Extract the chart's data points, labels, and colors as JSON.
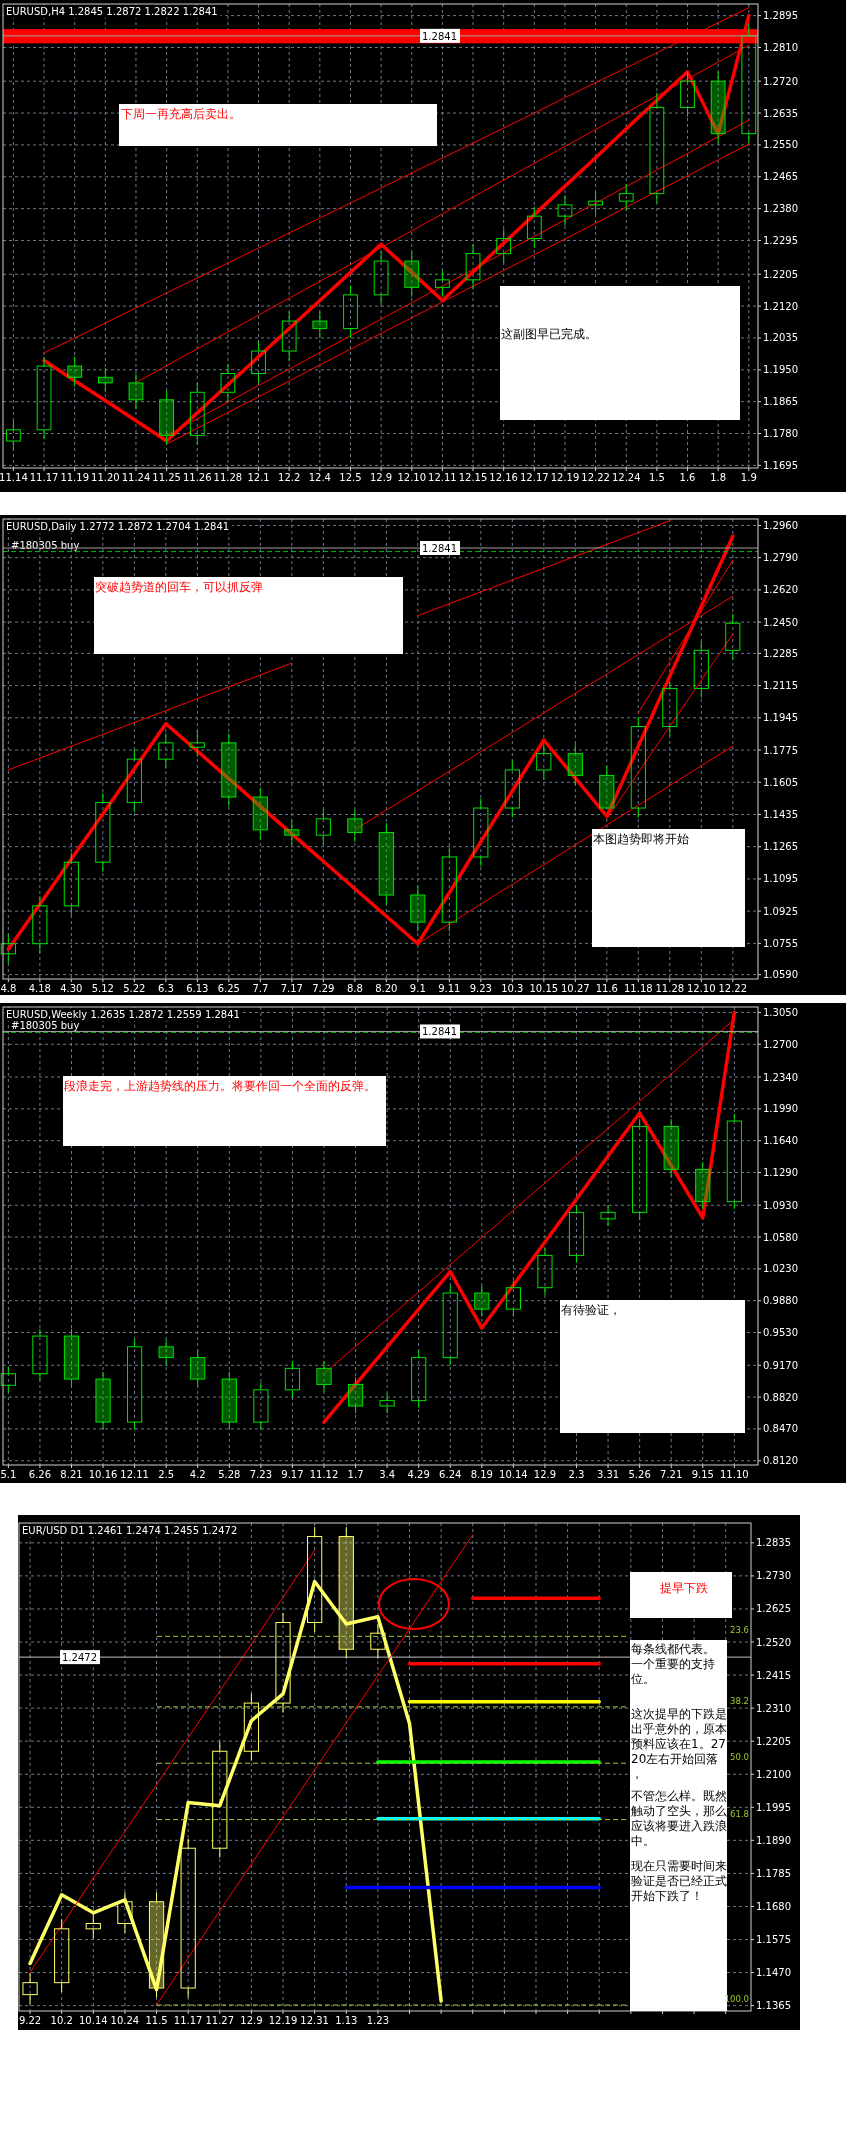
{
  "chart_data": [
    {
      "type": "candlestick",
      "title": "EURUSD,H4 1.2845 1.2872 1.2822 1.2841",
      "grid": true,
      "categories": [
        "11.14",
        "11.17",
        "11.19",
        "11.20",
        "11.24",
        "11.25",
        "11.26",
        "11.28",
        "12.1",
        "12.2",
        "12.4",
        "12.5",
        "12.9",
        "12.10",
        "12.11",
        "12.15",
        "12.16",
        "12.17",
        "12.19",
        "12.22",
        "12.24",
        "1.5",
        "1.6",
        "1.8",
        "1.9"
      ],
      "ylim": [
        1.1688,
        1.2926
      ],
      "yticks": [
        {
          "value": 1.1695,
          "label": "1.1695"
        },
        {
          "value": 1.178,
          "label": "1.1780"
        },
        {
          "value": 1.1865,
          "label": "1.1865"
        },
        {
          "value": 1.195,
          "label": "1.1950"
        },
        {
          "value": 1.2035,
          "label": "1.2035"
        },
        {
          "value": 1.212,
          "label": "1.2120"
        },
        {
          "value": 1.2205,
          "label": "1.2205"
        },
        {
          "value": 1.2295,
          "label": "1.2295"
        },
        {
          "value": 1.238,
          "label": "1.2380"
        },
        {
          "value": 1.2465,
          "label": "1.2465"
        },
        {
          "value": 1.255,
          "label": "1.2550"
        },
        {
          "value": 1.2635,
          "label": "1.2635"
        },
        {
          "value": 1.272,
          "label": "1.2720"
        },
        {
          "value": 1.281,
          "label": "1.2810"
        },
        {
          "value": 1.2895,
          "label": "1.2895"
        }
      ],
      "series": [
        {
          "type": "candlestick",
          "color": "#00e000",
          "ohlc": [
            [
              1.176,
              1.1815,
              1.1735,
              1.179
            ],
            [
              1.179,
              1.1985,
              1.1765,
              1.196
            ],
            [
              1.196,
              1.1985,
              1.1905,
              1.193
            ],
            [
              1.193,
              1.1955,
              1.189,
              1.1915
            ],
            [
              1.1915,
              1.194,
              1.1845,
              1.187
            ],
            [
              1.187,
              1.1895,
              1.175,
              1.1775
            ],
            [
              1.1775,
              1.1915,
              1.175,
              1.189
            ],
            [
              1.189,
              1.1965,
              1.1865,
              1.194
            ],
            [
              1.194,
              1.2025,
              1.1915,
              1.2
            ],
            [
              1.2,
              1.2105,
              1.1975,
              1.208
            ],
            [
              1.208,
              1.2105,
              1.2035,
              1.206
            ],
            [
              1.206,
              1.2175,
              1.2035,
              1.215
            ],
            [
              1.215,
              1.2265,
              1.2125,
              1.224
            ],
            [
              1.224,
              1.2265,
              1.2145,
              1.217
            ],
            [
              1.217,
              1.2215,
              1.2145,
              1.219
            ],
            [
              1.219,
              1.2285,
              1.2165,
              1.226
            ],
            [
              1.226,
              1.2325,
              1.2235,
              1.23
            ],
            [
              1.23,
              1.2385,
              1.2275,
              1.236
            ],
            [
              1.236,
              1.2415,
              1.2335,
              1.239
            ],
            [
              1.239,
              1.2425,
              1.2365,
              1.24
            ],
            [
              1.24,
              1.2445,
              1.2375,
              1.242
            ],
            [
              1.242,
              1.269,
              1.2395,
              1.265
            ],
            [
              1.265,
              1.2745,
              1.2625,
              1.272
            ],
            [
              1.272,
              1.2745,
              1.2555,
              1.258
            ],
            [
              1.258,
              1.2872,
              1.2555,
              1.2841
            ]
          ]
        },
        {
          "type": "line",
          "color": "#ff0000",
          "values": [
            null,
            1.1975,
            1.1921,
            1.1868,
            1.1814,
            1.176,
            1.1835,
            1.191,
            1.1985,
            1.206,
            1.2135,
            1.221,
            1.2285,
            1.221,
            1.2135,
            1.2211,
            1.2288,
            1.2364,
            1.244,
            1.2516,
            1.2593,
            1.2669,
            1.2745,
            1.258,
            1.2895
          ]
        },
        {
          "type": "line",
          "color": "#ff0000",
          "values": [
            null,
            1.1995,
            1.2035,
            1.2075,
            1.2115,
            1.2155,
            1.2195,
            1.2235,
            1.2275,
            1.2315,
            1.2355,
            1.2395,
            1.2435,
            1.2475,
            1.2515,
            1.2555,
            1.2595,
            1.2635,
            1.2676,
            1.2716,
            1.2756,
            1.2796,
            1.2836,
            1.2876,
            1.2916
          ]
        },
        {
          "type": "line",
          "color": "#ff0000",
          "values": [
            null,
            null,
            null,
            null,
            1.1916,
            1.1961,
            1.2006,
            1.2051,
            1.2096,
            1.2141,
            1.2186,
            1.2231,
            1.2276,
            1.2321,
            1.2366,
            1.2411,
            1.2456,
            1.2501,
            1.2546,
            1.2591,
            1.2636,
            1.2681,
            1.2726,
            1.2771,
            1.2816
          ]
        },
        {
          "type": "line",
          "color": "#ff0000",
          "values": [
            null,
            null,
            null,
            null,
            null,
            1.1752,
            1.1794,
            1.1836,
            1.1878,
            1.192,
            1.1963,
            1.2005,
            1.2047,
            1.2089,
            1.2131,
            1.2173,
            1.2215,
            1.2257,
            1.2299,
            1.2341,
            1.2384,
            1.2426,
            1.2468,
            1.251,
            1.2552
          ]
        },
        {
          "type": "line",
          "color": "#ff0000",
          "values": [
            null,
            null,
            null,
            null,
            null,
            1.1775,
            1.1819,
            1.1864,
            1.1908,
            1.1952,
            1.1996,
            1.2041,
            1.2085,
            1.2129,
            1.2173,
            1.2218,
            1.2262,
            1.2306,
            1.235,
            1.2395,
            1.2439,
            1.2483,
            1.2527,
            1.2572,
            1.2616
          ]
        }
      ],
      "bands": [
        {
          "axis": "y",
          "from": 1.2821,
          "to": 1.2859,
          "color": "#ff0000"
        }
      ],
      "ref_lines": [
        {
          "axis": "y",
          "value": 1.2841,
          "label": "1.2841"
        }
      ],
      "annotations": [
        "下周一再充高后卖出。",
        "这副图早已完成。"
      ]
    },
    {
      "type": "candlestick",
      "title": "EURUSD,Daily 1.2772 1.2872 1.2704 1.2841",
      "grid": true,
      "categories": [
        "4.8",
        "4.18",
        "4.30",
        "5.12",
        "5.22",
        "6.3",
        "6.13",
        "6.25",
        "7.7",
        "7.17",
        "7.29",
        "8.8",
        "8.20",
        "9.1",
        "9.11",
        "9.23",
        "10.3",
        "10.15",
        "10.27",
        "11.6",
        "11.18",
        "11.28",
        "12.10",
        "12.22"
      ],
      "ylim": [
        1.0567,
        1.2994
      ],
      "yticks": [
        {
          "value": 1.059,
          "label": "1.0590"
        },
        {
          "value": 1.0755,
          "label": "1.0755"
        },
        {
          "value": 1.0925,
          "label": "1.0925"
        },
        {
          "value": 1.1095,
          "label": "1.1095"
        },
        {
          "value": 1.1265,
          "label": "1.1265"
        },
        {
          "value": 1.1435,
          "label": "1.1435"
        },
        {
          "value": 1.1605,
          "label": "1.1605"
        },
        {
          "value": 1.1775,
          "label": "1.1775"
        },
        {
          "value": 1.1945,
          "label": "1.1945"
        },
        {
          "value": 1.2115,
          "label": "1.2115"
        },
        {
          "value": 1.2285,
          "label": "1.2285"
        },
        {
          "value": 1.245,
          "label": "1.2450"
        },
        {
          "value": 1.262,
          "label": "1.2620"
        },
        {
          "value": 1.279,
          "label": "1.2790"
        },
        {
          "value": 1.296,
          "label": "1.2960"
        }
      ],
      "series": [
        {
          "type": "candlestick",
          "color": "#00e000",
          "ohlc": [
            [
              1.07,
              1.0803,
              1.065,
              1.0753
            ],
            [
              1.0753,
              1.1003,
              1.0703,
              1.0953
            ],
            [
              1.0953,
              1.1233,
              1.0903,
              1.1183
            ],
            [
              1.1183,
              1.1548,
              1.1133,
              1.1498
            ],
            [
              1.1498,
              1.1777,
              1.1448,
              1.1727
            ],
            [
              1.1727,
              1.1863,
              1.1677,
              1.1813
            ],
            [
              1.179,
              1.188,
              1.174,
              1.1813
            ],
            [
              1.1813,
              1.1863,
              1.1477,
              1.1527
            ],
            [
              1.1527,
              1.1577,
              1.1304,
              1.1354
            ],
            [
              1.1354,
              1.1404,
              1.1276,
              1.1326
            ],
            [
              1.1326,
              1.1462,
              1.1276,
              1.1412
            ],
            [
              1.1412,
              1.1462,
              1.129,
              1.134
            ],
            [
              1.134,
              1.139,
              1.096,
              1.101
            ],
            [
              1.101,
              1.106,
              1.0817,
              1.0867
            ],
            [
              1.0867,
              1.1261,
              1.0817,
              1.1211
            ],
            [
              1.1211,
              1.1519,
              1.1161,
              1.1469
            ],
            [
              1.1469,
              1.172,
              1.1419,
              1.167
            ],
            [
              1.167,
              1.1806,
              1.162,
              1.1756
            ],
            [
              1.1756,
              1.1806,
              1.1591,
              1.1641
            ],
            [
              1.1641,
              1.1691,
              1.1469,
              1.1469
            ],
            [
              1.1469,
              1.1949,
              1.1419,
              1.1899
            ],
            [
              1.1899,
              1.213,
              1.1849,
              1.21
            ],
            [
              1.21,
              1.2351,
              1.205,
              1.2301
            ],
            [
              1.2301,
              1.2494,
              1.2251,
              1.2444
            ]
          ]
        },
        {
          "type": "line",
          "color": "#ff0000",
          "values": [
            1.0724,
            1.0962,
            1.12,
            1.1438,
            1.1676,
            1.1914,
            1.1769,
            1.1624,
            1.1478,
            1.1333,
            1.1188,
            1.1043,
            1.0898,
            1.0753,
            1.1022,
            1.1291,
            1.1559,
            1.1828,
            1.1627,
            1.1426,
            1.1795,
            1.2165,
            1.2534,
            1.2903
          ]
        },
        {
          "type": "line",
          "color": "#ff0000",
          "values": [
            1.167,
            1.1733,
            1.1795,
            1.1858,
            1.192,
            1.1983,
            1.2046,
            1.2108,
            1.2171,
            1.2234,
            null,
            null,
            null,
            1.2484,
            1.2547,
            1.2609,
            1.2672,
            1.2734,
            1.2797,
            1.286,
            1.2922,
            1.2985,
            null,
            null
          ]
        },
        {
          "type": "line",
          "color": "#ff0000",
          "values": [
            null,
            null,
            null,
            null,
            null,
            null,
            null,
            null,
            null,
            null,
            null,
            1.1355,
            1.1458,
            1.156,
            1.1663,
            1.1766,
            1.1868,
            1.1971,
            1.2074,
            1.2176,
            1.2279,
            1.2382,
            1.2484,
            1.2587
          ]
        },
        {
          "type": "line",
          "color": "#ff0000",
          "values": [
            null,
            null,
            null,
            null,
            null,
            null,
            null,
            null,
            null,
            null,
            null,
            null,
            null,
            1.0753,
            1.0857,
            1.0962,
            1.1066,
            1.117,
            1.1275,
            1.1379,
            1.1483,
            1.1587,
            1.1692,
            1.1796
          ]
        },
        {
          "type": "line",
          "color": "#ff0000",
          "values": [
            null,
            null,
            null,
            null,
            null,
            null,
            null,
            null,
            null,
            null,
            null,
            null,
            null,
            null,
            null,
            null,
            null,
            null,
            null,
            null,
            1.1971,
            1.224,
            1.2508,
            1.2777
          ]
        },
        {
          "type": "line",
          "color": "#ff0000",
          "values": [
            null,
            null,
            null,
            null,
            null,
            null,
            null,
            null,
            null,
            null,
            null,
            null,
            null,
            null,
            null,
            null,
            null,
            null,
            null,
            1.1412,
            1.1656,
            1.19,
            1.2143,
            1.2387
          ]
        }
      ],
      "ref_lines": [
        {
          "axis": "y",
          "value": 1.2822,
          "label": "#180305 buy",
          "color": "#00c000",
          "line_style": "dashed"
        },
        {
          "axis": "y",
          "value": 1.2841,
          "label": "1.2841"
        }
      ],
      "annotations": [
        "突破趋势道的回车，可以抓反弹",
        "本图趋势即将开始"
      ]
    },
    {
      "type": "candlestick",
      "title": "EURUSD,Weekly 1.2635 1.2872 1.2559 1.2841",
      "grid": true,
      "categories": [
        "5.1",
        "6.26",
        "8.21",
        "10.16",
        "12.11",
        "2.5",
        "4.2",
        "5.28",
        "7.23",
        "9.17",
        "11.12",
        "1.7",
        "3.4",
        "4.29",
        "6.24",
        "8.19",
        "10.14",
        "12.9",
        "2.3",
        "3.31",
        "5.26",
        "7.21",
        "9.15",
        "11.10"
      ],
      "ylim": [
        0.8073,
        1.311
      ],
      "yticks": [
        {
          "value": 0.812,
          "label": "0.8120"
        },
        {
          "value": 0.847,
          "label": "0.8470"
        },
        {
          "value": 0.882,
          "label": "0.8820"
        },
        {
          "value": 0.917,
          "label": "0.9170"
        },
        {
          "value": 0.953,
          "label": "0.9530"
        },
        {
          "value": 0.988,
          "label": "0.9880"
        },
        {
          "value": 1.023,
          "label": "1.0230"
        },
        {
          "value": 1.058,
          "label": "1.0580"
        },
        {
          "value": 1.093,
          "label": "1.0930"
        },
        {
          "value": 1.129,
          "label": "1.1290"
        },
        {
          "value": 1.164,
          "label": "1.1640"
        },
        {
          "value": 1.199,
          "label": "1.1990"
        },
        {
          "value": 1.234,
          "label": "1.2340"
        },
        {
          "value": 1.27,
          "label": "1.2700"
        },
        {
          "value": 1.305,
          "label": "1.3050"
        }
      ],
      "series": [
        {
          "type": "candlestick",
          "color": "#00e000",
          "ohlc": [
            [
              0.895,
              0.9157,
              0.887,
              0.9077
            ],
            [
              0.9077,
              0.9571,
              0.8997,
              0.9491
            ],
            [
              0.9491,
              0.9571,
              0.8938,
              0.9018
            ],
            [
              0.9018,
              0.9098,
              0.8465,
              0.8545
            ],
            [
              0.8545,
              0.9453,
              0.8465,
              0.9373
            ],
            [
              0.9373,
              0.9453,
              0.9174,
              0.9254
            ],
            [
              0.9254,
              0.9334,
              0.8938,
              0.9018
            ],
            [
              0.9018,
              0.9098,
              0.8465,
              0.8545
            ],
            [
              0.8545,
              0.898,
              0.8465,
              0.89
            ],
            [
              0.89,
              0.9216,
              0.882,
              0.9136
            ],
            [
              0.9136,
              0.9216,
              0.8879,
              0.8959
            ],
            [
              0.8959,
              0.9039,
              0.8642,
              0.8722
            ],
            [
              0.8722,
              0.8861,
              0.8642,
              0.8781
            ],
            [
              0.8781,
              0.9334,
              0.8701,
              0.9254
            ],
            [
              0.9254,
              1.0044,
              0.9174,
              0.9964
            ],
            [
              0.9964,
              1.0044,
              0.9707,
              0.9787
            ],
            [
              0.9787,
              1.0103,
              0.9707,
              1.0023
            ],
            [
              1.0023,
              1.0458,
              0.9943,
              1.0378
            ],
            [
              1.0378,
              1.0931,
              1.0298,
              1.0851
            ],
            [
              1.078,
              1.0931,
              1.07,
              1.0851
            ],
            [
              1.0851,
              1.1877,
              1.0771,
              1.1797
            ],
            [
              1.1797,
              1.1877,
              1.1244,
              1.1324
            ],
            [
              1.1324,
              1.1404,
              1.0889,
              1.0969
            ],
            [
              1.0969,
              1.1936,
              1.0889,
              1.1856
            ]
          ]
        },
        {
          "type": "line",
          "color": "#ff0000",
          "values": [
            null,
            null,
            null,
            null,
            null,
            null,
            null,
            null,
            null,
            null,
            0.8545,
            0.8959,
            0.9373,
            0.9786,
            1.02,
            0.9579,
            1.0052,
            1.0525,
            1.0998,
            1.1471,
            1.1944,
            1.1368,
            1.0792,
            1.305
          ]
        },
        {
          "type": "line",
          "color": "#ff0000",
          "values": [
            null,
            null,
            null,
            null,
            null,
            null,
            null,
            null,
            null,
            null,
            0.9077,
            0.9377,
            0.9676,
            0.9976,
            1.0276,
            1.0575,
            1.0875,
            1.1175,
            1.1475,
            1.1774,
            1.2074,
            1.2374,
            1.2673,
            1.2973
          ]
        }
      ],
      "ref_lines": [
        {
          "axis": "y",
          "value": 1.2831,
          "label": "#180305 buy",
          "color": "#00c000",
          "line_style": "dashed"
        },
        {
          "axis": "y",
          "value": 1.2841,
          "label": "1.2841"
        }
      ],
      "annotations": [
        "段浪走完，上游趋势线的压力。将要作回一个全面的反弹。",
        "有待验证，"
      ]
    },
    {
      "type": "candlestick",
      "title": "EUR/USD D1 1.2461 1.2474 1.2455 1.2472",
      "grid": true,
      "categories": [
        "9.22",
        "10.2",
        "10.14",
        "10.24",
        "11.5",
        "11.17",
        "11.27",
        "12.9",
        "12.19",
        "12.31",
        "1.13",
        "1.23",
        null,
        null,
        null,
        null,
        null,
        null,
        null,
        null,
        null,
        null,
        null
      ],
      "ylim": [
        1.1348,
        1.2898
      ],
      "yticks": [
        {
          "value": 1.1365,
          "label": "1.1365"
        },
        {
          "value": 1.147,
          "label": "1.1470"
        },
        {
          "value": 1.1575,
          "label": "1.1575"
        },
        {
          "value": 1.168,
          "label": "1.1680"
        },
        {
          "value": 1.1785,
          "label": "1.1785"
        },
        {
          "value": 1.189,
          "label": "1.1890"
        },
        {
          "value": 1.1995,
          "label": "1.1995"
        },
        {
          "value": 1.21,
          "label": "1.2100"
        },
        {
          "value": 1.2205,
          "label": "1.2205"
        },
        {
          "value": 1.231,
          "label": "1.2310"
        },
        {
          "value": 1.2415,
          "label": "1.2415"
        },
        {
          "value": 1.252,
          "label": "1.2520"
        },
        {
          "value": 1.2625,
          "label": "1.2625"
        },
        {
          "value": 1.273,
          "label": "1.2730"
        },
        {
          "value": 1.2835,
          "label": "1.2835"
        }
      ],
      "series": [
        {
          "type": "candlestick",
          "color": "#ffff66",
          "ohlc": [
            [
              1.14,
              1.1468,
              1.137,
              1.1438
            ],
            [
              1.1438,
              1.1639,
              1.1408,
              1.1609
            ],
            [
              1.1609,
              1.1656,
              1.1579,
              1.1626
            ],
            [
              1.1626,
              1.1725,
              1.1596,
              1.1695
            ],
            [
              1.1695,
              1.1725,
              1.1391,
              1.1421
            ],
            [
              1.1421,
              1.1895,
              1.1391,
              1.1865
            ],
            [
              1.1865,
              1.2203,
              1.1835,
              1.2173
            ],
            [
              1.2173,
              1.2356,
              1.2143,
              1.2326
            ],
            [
              1.2326,
              1.2612,
              1.2296,
              1.2582
            ],
            [
              1.2582,
              1.2885,
              1.2552,
              1.2855
            ],
            [
              1.2855,
              1.2885,
              1.2467,
              1.2497
            ],
            [
              1.2497,
              1.2578,
              1.2467,
              1.2548
            ],
            null,
            null,
            null,
            null,
            null,
            null,
            null,
            null,
            null,
            null,
            null
          ]
        },
        {
          "type": "line",
          "color": "#ffff66",
          "values": [
            1.1499,
            1.1717,
            1.166,
            1.1701,
            1.1416,
            1.201,
            1.2,
            1.227,
            1.2355,
            1.2712,
            1.2577,
            1.26,
            1.2261,
            1.138,
            null,
            null,
            null,
            null,
            null,
            null,
            null,
            null,
            null
          ]
        },
        {
          "type": "line",
          "color": "#ff0000",
          "values": [
            1.1471,
            1.162,
            1.1769,
            1.1918,
            1.2067,
            1.2216,
            1.2364,
            1.2513,
            1.2662,
            1.2811,
            null,
            null,
            null,
            null,
            null,
            null,
            null,
            null,
            null,
            null,
            null,
            null,
            null
          ]
        },
        {
          "type": "line",
          "color": "#ff0000",
          "values": [
            null,
            null,
            null,
            null,
            1.1367,
            1.1516,
            1.1666,
            1.1815,
            1.1965,
            1.2114,
            1.2264,
            1.2413,
            1.2562,
            1.2712,
            1.2861,
            null,
            null,
            null,
            null,
            null,
            null,
            null,
            null
          ]
        },
        {
          "type": "line",
          "color": "#ff0000",
          "values": [
            null,
            null,
            null,
            null,
            null,
            null,
            null,
            null,
            null,
            null,
            null,
            null,
            null,
            null,
            1.2659,
            1.2659,
            1.2659,
            1.2659,
            1.2659,
            null,
            null,
            null,
            null
          ]
        },
        {
          "type": "line",
          "color": "#ff0000",
          "values": [
            null,
            null,
            null,
            null,
            null,
            null,
            null,
            null,
            null,
            null,
            null,
            null,
            1.2451,
            1.2451,
            1.2451,
            1.2451,
            1.2451,
            1.2451,
            1.2451,
            null,
            null,
            null,
            null
          ]
        },
        {
          "type": "line",
          "color": "#ffff00",
          "values": [
            null,
            null,
            null,
            null,
            null,
            null,
            null,
            null,
            null,
            null,
            null,
            null,
            1.233,
            1.233,
            1.233,
            1.233,
            1.233,
            1.233,
            1.233,
            null,
            null,
            null,
            null
          ]
        },
        {
          "type": "line",
          "color": "#00ff00",
          "values": [
            null,
            null,
            null,
            null,
            null,
            null,
            null,
            null,
            null,
            null,
            null,
            1.2139,
            1.2139,
            1.2139,
            1.2139,
            1.2139,
            1.2139,
            1.2139,
            1.2139,
            null,
            null,
            null,
            null
          ]
        },
        {
          "type": "line",
          "color": "#00ffff",
          "values": [
            null,
            null,
            null,
            null,
            null,
            null,
            null,
            null,
            null,
            null,
            null,
            1.1959,
            1.1959,
            1.1959,
            1.1959,
            1.1959,
            1.1959,
            1.1959,
            1.1959,
            null,
            null,
            null,
            null
          ]
        },
        {
          "type": "line",
          "color": "#0000ff",
          "values": [
            null,
            null,
            null,
            null,
            null,
            null,
            null,
            null,
            null,
            null,
            1.174,
            1.174,
            1.174,
            1.174,
            1.174,
            1.174,
            1.174,
            1.174,
            1.174,
            null,
            null,
            null,
            null
          ]
        }
      ],
      "ref_lines": [
        {
          "axis": "y",
          "value": 1.2472,
          "label": "1.2472",
          "color": "#c0c0c0"
        },
        {
          "axis": "y",
          "value": 1.2538,
          "color": "#9acd32",
          "line_style": "dashed"
        },
        {
          "axis": "y",
          "value": 1.2314,
          "color": "#9acd32",
          "line_style": "dashed"
        },
        {
          "axis": "y",
          "value": 1.2135,
          "color": "#9acd32",
          "line_style": "dashed"
        },
        {
          "axis": "y",
          "value": 1.1956,
          "color": "#9acd32",
          "line_style": "dashed"
        },
        {
          "axis": "y",
          "value": 1.1367,
          "color": "#9acd32",
          "line_style": "dashed"
        }
      ],
      "annotations": [
        "提早下跌",
        "每条线都代表。一个重要的支持位。",
        "这次提早的下跌是出乎意外的，原本预料应该在1。2720左右开始回落，",
        "不管怎么样。既然触动了空头，那么应该将要进入跌浪中。",
        "现在只需要时间来验证是否已经正式开始下跌了！",
        "23.6",
        "38.2",
        "50.0",
        "61.8",
        "100.0"
      ]
    }
  ]
}
